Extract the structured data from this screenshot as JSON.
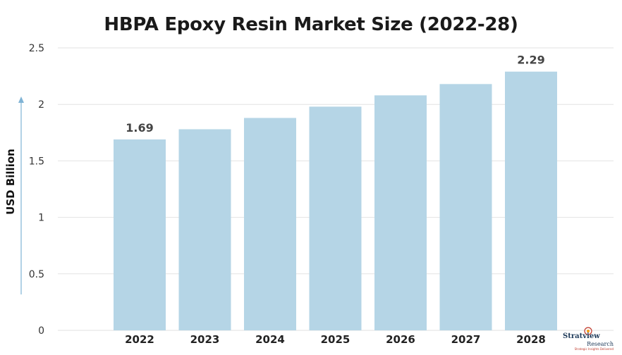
{
  "chart_data": {
    "type": "bar",
    "title": "HBPA Epoxy Resin Market Size (2022-28)",
    "xlabel": "",
    "ylabel": "USD Billion",
    "categories": [
      "2022",
      "2023",
      "2024",
      "2025",
      "2026",
      "2027",
      "2028"
    ],
    "values": [
      1.69,
      1.78,
      1.88,
      1.98,
      2.08,
      2.18,
      2.29
    ],
    "data_labels": {
      "2022": "1.69",
      "2028": "2.29"
    },
    "ylim": [
      0,
      2.5
    ],
    "yticks": [
      "0",
      "0.5",
      "1",
      "1.5",
      "2",
      "2.5"
    ],
    "grid": true,
    "bar_color": "#b5d5e6",
    "legend": "none"
  },
  "logo": {
    "main": "Stratview",
    "sub": "Research",
    "tagline": "Strategic Insights Delivered"
  }
}
